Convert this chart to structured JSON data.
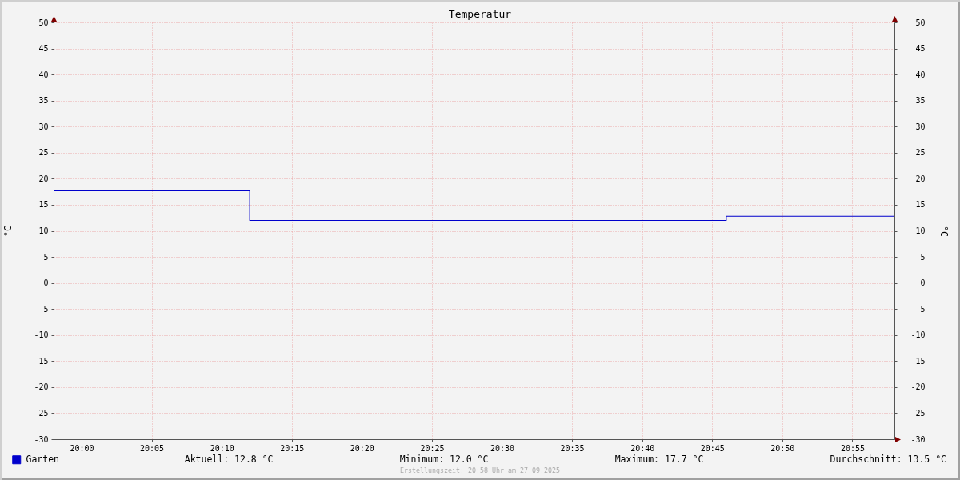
{
  "chart_data": {
    "type": "step",
    "title": "Temperatur",
    "ylabel": "°C",
    "y2label": "°C",
    "x": [
      19.9667,
      20.2,
      20.7667,
      20.9667
    ],
    "series": [
      {
        "name": "Garten",
        "color": "#0000cc",
        "values": [
          17.7,
          12.0,
          12.8,
          12.8
        ]
      }
    ],
    "xlim": [
      19.9667,
      20.9667
    ],
    "xticks": [
      {
        "value": 20,
        "label": "20:00"
      },
      {
        "value": 20.0833,
        "label": "20:05"
      },
      {
        "value": 20.1667,
        "label": "20:10"
      },
      {
        "value": 20.25,
        "label": "20:15"
      },
      {
        "value": 20.3333,
        "label": "20:20"
      },
      {
        "value": 20.4167,
        "label": "20:25"
      },
      {
        "value": 20.5,
        "label": "20:30"
      },
      {
        "value": 20.5833,
        "label": "20:35"
      },
      {
        "value": 20.6667,
        "label": "20:40"
      },
      {
        "value": 20.75,
        "label": "20:45"
      },
      {
        "value": 20.8333,
        "label": "20:50"
      },
      {
        "value": 20.9167,
        "label": "20:55"
      }
    ],
    "ylim": [
      -30,
      50
    ],
    "yticks": [
      -30,
      -25,
      -20,
      -15,
      -10,
      -5,
      0,
      5,
      10,
      15,
      20,
      25,
      30,
      35,
      40,
      45,
      50
    ],
    "y2lim": [
      -30,
      50
    ],
    "y2ticks": [
      -30,
      -25,
      -20,
      -15,
      -10,
      -5,
      0,
      5,
      10,
      15,
      20,
      25,
      30,
      35,
      40,
      45,
      50
    ],
    "grid": true,
    "legend": "bottom left",
    "line_style": "solid",
    "annotations": [
      "Aktuell: 12.8 °C",
      "Minimum: 12.0 °C",
      "Maximum: 17.7 °C",
      "Durchschnitt: 13.5 °C",
      "Erstellungszeit: 20:58 Uhr am 27.09.2025"
    ]
  }
}
